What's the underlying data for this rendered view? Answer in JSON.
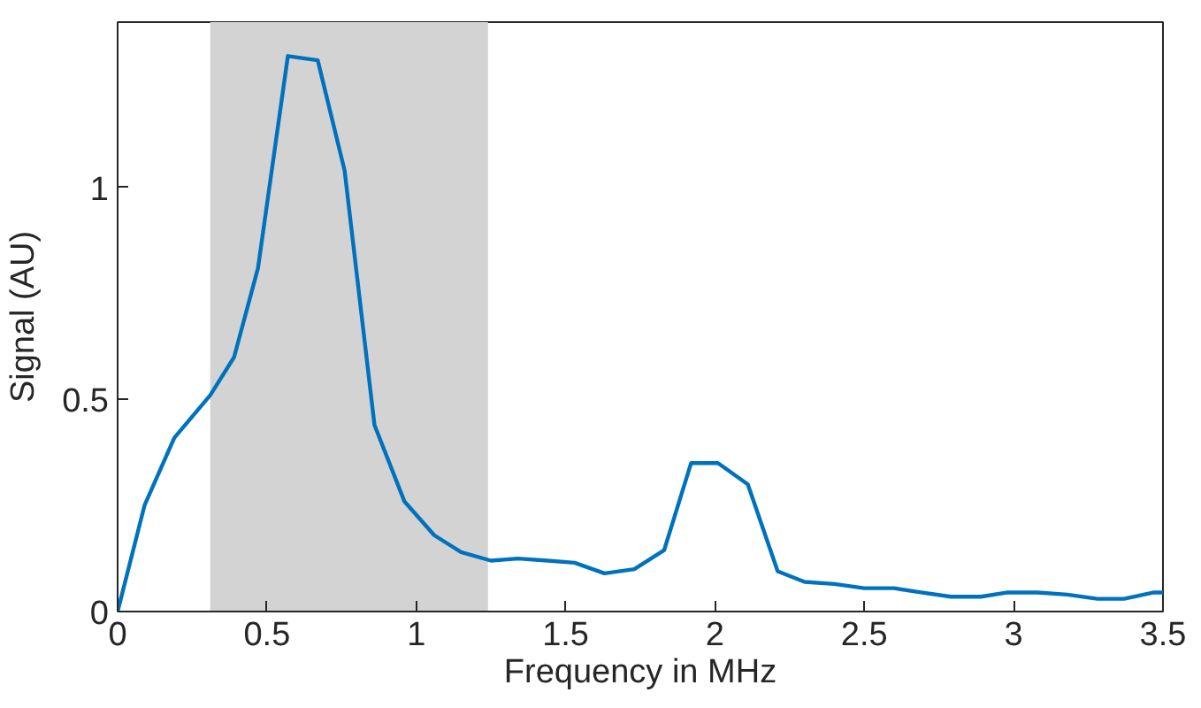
{
  "chart_data": {
    "type": "line",
    "xlabel": "Frequency in MHz",
    "ylabel": "Signal (AU)",
    "x": [
      0,
      0.09,
      0.19,
      0.31,
      0.39,
      0.47,
      0.57,
      0.67,
      0.76,
      0.86,
      0.96,
      1.06,
      1.15,
      1.25,
      1.34,
      1.44,
      1.53,
      1.63,
      1.73,
      1.83,
      1.92,
      2.01,
      2.11,
      2.21,
      2.3,
      2.4,
      2.5,
      2.6,
      2.69,
      2.79,
      2.89,
      2.98,
      3.08,
      3.18,
      3.28,
      3.37,
      3.47,
      3.5
    ],
    "series": [
      {
        "color": "#0072bd",
        "values": [
          0,
          0.25,
          0.41,
          0.51,
          0.6,
          0.81,
          1.31,
          1.3,
          1.04,
          0.44,
          0.26,
          0.18,
          0.14,
          0.12,
          0.125,
          0.12,
          0.115,
          0.09,
          0.1,
          0.145,
          0.35,
          0.35,
          0.3,
          0.095,
          0.07,
          0.065,
          0.055,
          0.055,
          0.045,
          0.035,
          0.035,
          0.045,
          0.045,
          0.04,
          0.03,
          0.03,
          0.045,
          0.045
        ]
      }
    ],
    "xlim": [
      0,
      3.5
    ],
    "ylim": [
      0,
      1.39
    ],
    "xticks": [
      0,
      0.5,
      1,
      1.5,
      2,
      2.5,
      3,
      3.5
    ],
    "yticks": [
      0,
      0.5,
      1
    ],
    "bands": [
      {
        "axis": "x",
        "from": 0.31,
        "to": 1.24,
        "color": "#d3d3d3"
      }
    ],
    "grid": false,
    "line_style": "solid",
    "marker": "none"
  }
}
